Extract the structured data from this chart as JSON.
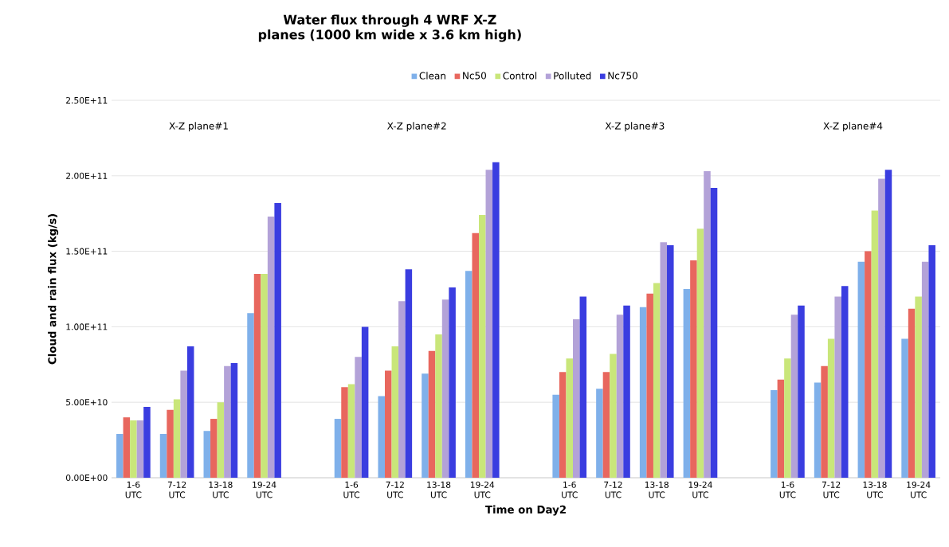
{
  "chart_data": {
    "type": "bar",
    "title": "Water flux through 4 WRF X-Z planes (1000 km wide x 3.6 km high)",
    "xlabel": "Time on Day2",
    "ylabel": "Cloud and rain flux (kg/s)",
    "categories": [
      "1-6 UTC",
      "7-12 UTC",
      "13-18 UTC",
      "19-24 UTC",
      null,
      "1-6 UTC",
      "7-12 UTC",
      "13-18 UTC",
      "19-24 UTC",
      null,
      "1-6 UTC",
      "7-12 UTC",
      "13-18 UTC",
      "19-24 UTC",
      null,
      "1-6 UTC",
      "7-12 UTC",
      "13-18 UTC",
      "19-24 UTC"
    ],
    "series": [
      {
        "name": "Clean",
        "color": "#7fb0ea",
        "values": [
          29000000000.0,
          29000000000.0,
          31000000000.0,
          109000000000.0,
          null,
          39000000000.0,
          54000000000.0,
          69000000000.0,
          137000000000.0,
          null,
          55000000000.0,
          59000000000.0,
          113000000000.0,
          125000000000.0,
          null,
          58000000000.0,
          63000000000.0,
          143000000000.0,
          92000000000.0
        ]
      },
      {
        "name": "Nc50",
        "color": "#e8675e",
        "values": [
          40000000000.0,
          45000000000.0,
          39000000000.0,
          135000000000.0,
          null,
          60000000000.0,
          71000000000.0,
          84000000000.0,
          162000000000.0,
          null,
          70000000000.0,
          70000000000.0,
          122000000000.0,
          144000000000.0,
          null,
          65000000000.0,
          74000000000.0,
          150000000000.0,
          112000000000.0
        ]
      },
      {
        "name": "Control",
        "color": "#c9e67a",
        "values": [
          38000000000.0,
          52000000000.0,
          50000000000.0,
          135000000000.0,
          null,
          62000000000.0,
          87000000000.0,
          95000000000.0,
          174000000000.0,
          null,
          79000000000.0,
          82000000000.0,
          129000000000.0,
          165000000000.0,
          null,
          79000000000.0,
          92000000000.0,
          177000000000.0,
          120000000000.0
        ]
      },
      {
        "name": "Polluted",
        "color": "#b3a2d8",
        "values": [
          38000000000.0,
          71000000000.0,
          74000000000.0,
          173000000000.0,
          null,
          80000000000.0,
          117000000000.0,
          118000000000.0,
          204000000000.0,
          null,
          105000000000.0,
          108000000000.0,
          156000000000.0,
          203000000000.0,
          null,
          108000000000.0,
          120000000000.0,
          198000000000.0,
          143000000000.0
        ]
      },
      {
        "name": "Nc750",
        "color": "#3a3de0",
        "values": [
          47000000000.0,
          87000000000.0,
          76000000000.0,
          182000000000.0,
          null,
          100000000000.0,
          138000000000.0,
          126000000000.0,
          209000000000.0,
          null,
          120000000000.0,
          114000000000.0,
          154000000000.0,
          192000000000.0,
          null,
          114000000000.0,
          127000000000.0,
          204000000000.0,
          154000000000.0
        ]
      }
    ],
    "ylim": [
      0,
      250000000000.0
    ],
    "yticks": [
      {
        "value": 0,
        "label": "0.00E+00"
      },
      {
        "value": 50000000000.0,
        "label": "5.00E+10"
      },
      {
        "value": 100000000000.0,
        "label": "1.00E+11"
      },
      {
        "value": 150000000000.0,
        "label": "1.50E+11"
      },
      {
        "value": 200000000000.0,
        "label": "2.00E+11"
      },
      {
        "value": 250000000000.0,
        "label": "2.50E+11"
      }
    ],
    "grid": "y",
    "legend": "top",
    "annotations": [
      "X-Z plane#1",
      "X-Z plane#2",
      "X-Z plane#3",
      "X-Z plane#4"
    ]
  }
}
